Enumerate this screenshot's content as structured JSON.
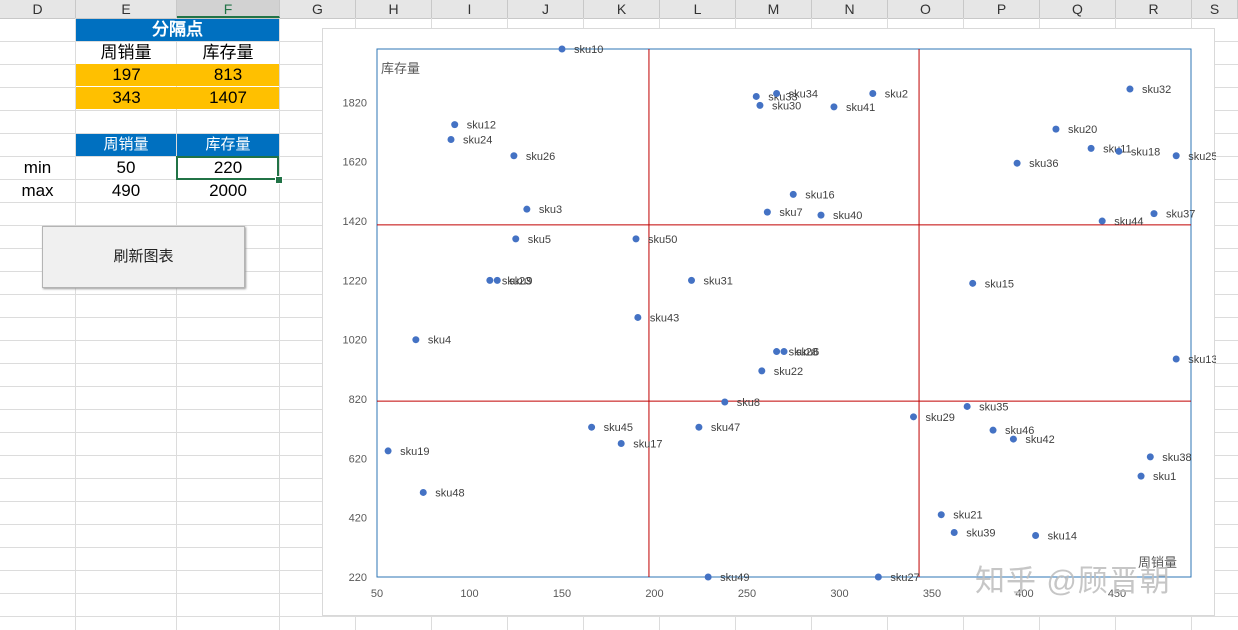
{
  "columns": [
    "D",
    "E",
    "F",
    "G",
    "H",
    "I",
    "J",
    "K",
    "L",
    "M",
    "N",
    "O",
    "P",
    "Q",
    "R",
    "S"
  ],
  "selected_column": "F",
  "table1": {
    "title": "分隔点",
    "headers": [
      "周销量",
      "库存量"
    ],
    "rows": [
      [
        "197",
        "813"
      ],
      [
        "343",
        "1407"
      ]
    ]
  },
  "table2": {
    "headers": [
      "周销量",
      "库存量"
    ],
    "rows": [
      {
        "label": "min",
        "values": [
          "50",
          "220"
        ]
      },
      {
        "label": "max",
        "values": [
          "490",
          "2000"
        ]
      }
    ]
  },
  "refresh_button": "刷新图表",
  "watermark": "知乎 @顾晋朝",
  "colors": {
    "header_blue": "#0070c0",
    "highlight": "#ffc000",
    "point": "#4472c4",
    "divider": "#c00000",
    "plot_border": "#2e75b6"
  },
  "chart_data": {
    "type": "scatter",
    "ylabel": "库存量",
    "xlabel": "周销量",
    "xlim": [
      50,
      490
    ],
    "ylim": [
      220,
      2000
    ],
    "xticks": [
      50,
      100,
      150,
      200,
      250,
      300,
      350,
      400,
      450
    ],
    "yticks": [
      220,
      420,
      620,
      820,
      1020,
      1220,
      1420,
      1620,
      1820
    ],
    "dividers": {
      "x": [
        197,
        343
      ],
      "y": [
        813,
        1407
      ]
    },
    "points": [
      {
        "label": "sku1",
        "x": 463,
        "y": 560
      },
      {
        "label": "sku2",
        "x": 318,
        "y": 1850
      },
      {
        "label": "sku3",
        "x": 131,
        "y": 1460
      },
      {
        "label": "sku4",
        "x": 71,
        "y": 1020
      },
      {
        "label": "sku5",
        "x": 125,
        "y": 1360
      },
      {
        "label": "sku7",
        "x": 261,
        "y": 1450
      },
      {
        "label": "sku8",
        "x": 238,
        "y": 810
      },
      {
        "label": "sku9",
        "x": 115,
        "y": 1220
      },
      {
        "label": "sku10",
        "x": 150,
        "y": 2000
      },
      {
        "label": "sku11",
        "x": 436,
        "y": 1665
      },
      {
        "label": "sku12",
        "x": 92,
        "y": 1745
      },
      {
        "label": "sku13",
        "x": 482,
        "y": 955
      },
      {
        "label": "sku14",
        "x": 406,
        "y": 360
      },
      {
        "label": "sku15",
        "x": 372,
        "y": 1210
      },
      {
        "label": "sku16",
        "x": 275,
        "y": 1510
      },
      {
        "label": "sku17",
        "x": 182,
        "y": 670
      },
      {
        "label": "sku18",
        "x": 451,
        "y": 1655
      },
      {
        "label": "sku19",
        "x": 56,
        "y": 645
      },
      {
        "label": "sku20",
        "x": 417,
        "y": 1730
      },
      {
        "label": "sku21",
        "x": 355,
        "y": 430
      },
      {
        "label": "sku22",
        "x": 258,
        "y": 915
      },
      {
        "label": "sku24",
        "x": 90,
        "y": 1695
      },
      {
        "label": "sku25",
        "x": 482,
        "y": 1640
      },
      {
        "label": "sku26",
        "x": 124,
        "y": 1640
      },
      {
        "label": "sku27",
        "x": 321,
        "y": 220
      },
      {
        "label": "sku28",
        "x": 266,
        "y": 980
      },
      {
        "label": "sku29",
        "x": 340,
        "y": 760
      },
      {
        "label": "sku30",
        "x": 257,
        "y": 1810
      },
      {
        "label": "sku31",
        "x": 220,
        "y": 1220
      },
      {
        "label": "sku32",
        "x": 457,
        "y": 1865
      },
      {
        "label": "sku33",
        "x": 255,
        "y": 1840
      },
      {
        "label": "sku34",
        "x": 266,
        "y": 1850
      },
      {
        "label": "sku35",
        "x": 369,
        "y": 795
      },
      {
        "label": "sku36",
        "x": 396,
        "y": 1615
      },
      {
        "label": "sku37",
        "x": 470,
        "y": 1445
      },
      {
        "label": "sku39",
        "x": 362,
        "y": 370
      },
      {
        "label": "sku40",
        "x": 290,
        "y": 1440
      },
      {
        "label": "sku41",
        "x": 297,
        "y": 1805
      },
      {
        "label": "sku42",
        "x": 394,
        "y": 685
      },
      {
        "label": "sku43",
        "x": 191,
        "y": 1095
      },
      {
        "label": "sku44",
        "x": 442,
        "y": 1420
      },
      {
        "label": "sku45",
        "x": 166,
        "y": 725
      },
      {
        "label": "sku46",
        "x": 383,
        "y": 715
      },
      {
        "label": "sku47",
        "x": 224,
        "y": 725
      },
      {
        "label": "sku48",
        "x": 75,
        "y": 505
      },
      {
        "label": "sku49",
        "x": 229,
        "y": 220
      },
      {
        "label": "sku50",
        "x": 190,
        "y": 1360
      },
      {
        "label": "sku6",
        "x": 270,
        "y": 980
      },
      {
        "label": "sku23",
        "x": 111,
        "y": 1220
      },
      {
        "label": "sku38",
        "x": 468,
        "y": 625
      }
    ]
  }
}
